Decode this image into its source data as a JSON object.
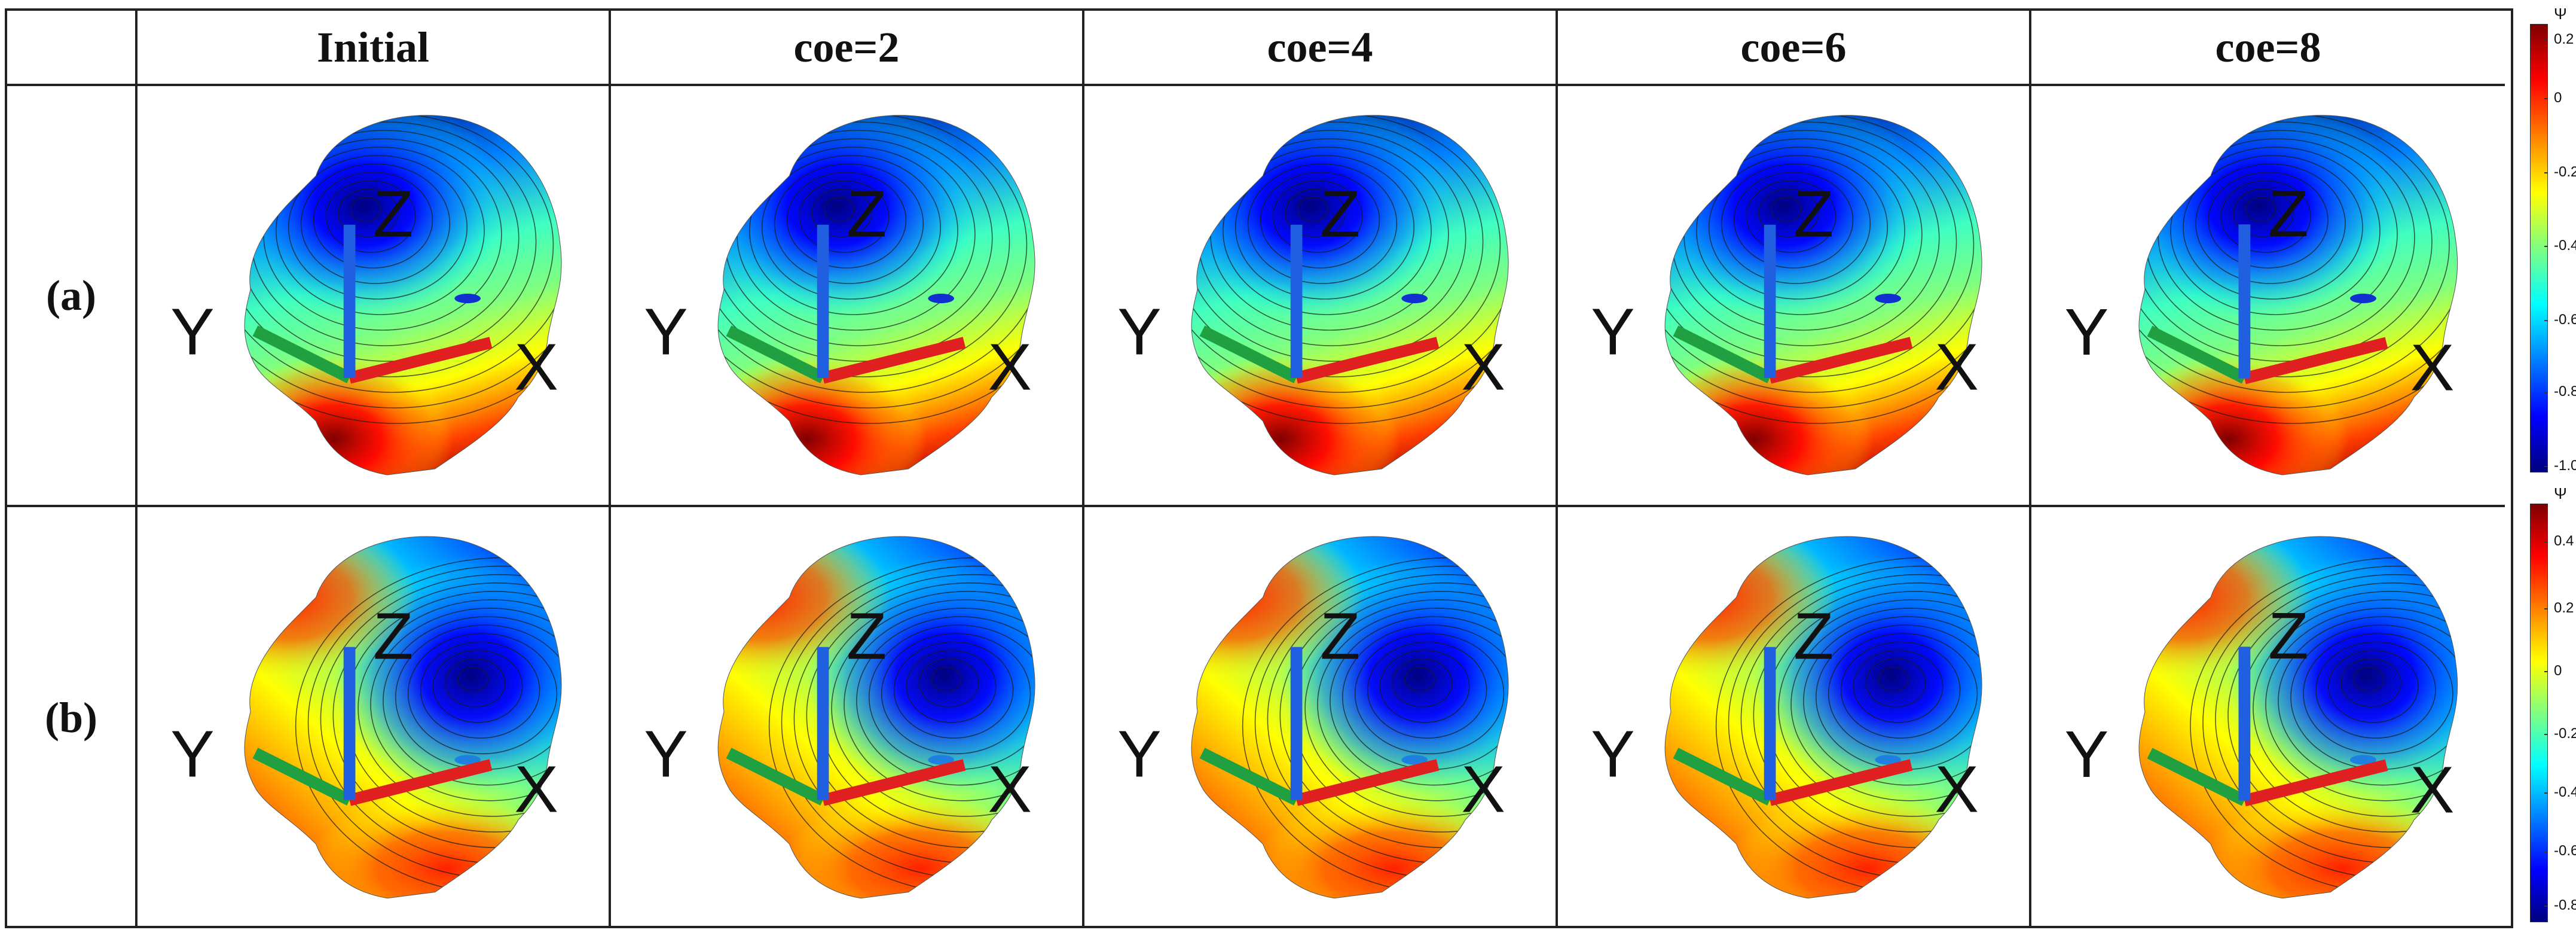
{
  "headers": [
    "",
    "Initial",
    "coe=2",
    "coe=4",
    "coe=6",
    "coe=8"
  ],
  "rows": [
    {
      "label": "(a)",
      "pattern": "a"
    },
    {
      "label": "(b)",
      "pattern": "b"
    }
  ],
  "axes_labels": {
    "x": "X",
    "y": "Y",
    "z": "Z"
  },
  "colorbars": [
    {
      "title": "Ψ",
      "ticks": [
        "0.2",
        "0",
        "-0.2",
        "-0.4",
        "-0.6",
        "-0.8",
        "-1.0"
      ]
    },
    {
      "title": "Ψ",
      "ticks": [
        "0.4",
        "0.2",
        "0",
        "-0.2",
        "-0.4",
        "-0.6",
        "-0.8"
      ]
    }
  ],
  "colors": {
    "jet": [
      "#00007f",
      "#0000ff",
      "#0080ff",
      "#00ffff",
      "#80ff80",
      "#ffff00",
      "#ff8000",
      "#ff0000",
      "#7f0000"
    ],
    "border": "#222222"
  }
}
